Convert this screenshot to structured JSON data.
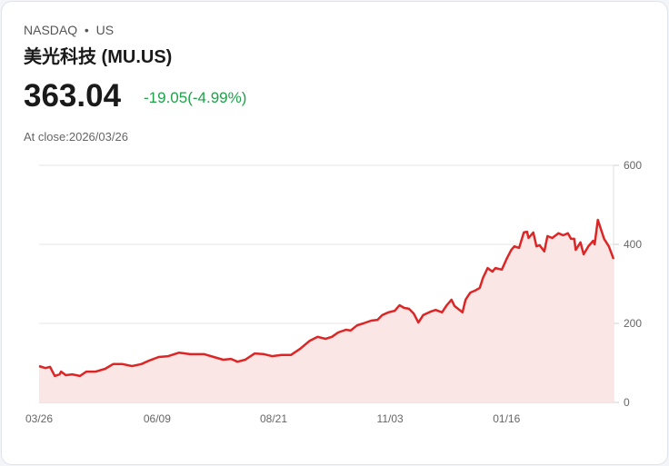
{
  "header": {
    "exchange": "NASDAQ",
    "separator": "•",
    "market": "US",
    "name": "美光科技 (MU.US)",
    "price": "363.04",
    "change": "-19.05(-4.99%)",
    "close_label": "At close:2026/03/26"
  },
  "colors": {
    "line": "#dc2626",
    "fill": "#fbe6e6",
    "change": "#1fa24a",
    "grid": "#e5e5e5"
  },
  "chart_data": {
    "type": "area",
    "title": "",
    "xlabel": "",
    "ylabel": "",
    "xlim": [
      0,
      365
    ],
    "ylim": [
      0,
      600
    ],
    "grid": true,
    "y_axis_position": "right",
    "yticks": [
      0,
      200,
      400,
      600
    ],
    "xticks": [
      {
        "x": 0,
        "label": "03/26"
      },
      {
        "x": 75,
        "label": "06/09"
      },
      {
        "x": 149,
        "label": "08/21"
      },
      {
        "x": 223,
        "label": "11/03"
      },
      {
        "x": 297,
        "label": "01/16"
      }
    ],
    "points": [
      [
        0,
        92
      ],
      [
        4,
        87
      ],
      [
        7,
        90
      ],
      [
        10,
        67
      ],
      [
        13,
        71
      ],
      [
        14,
        78
      ],
      [
        17,
        69
      ],
      [
        21,
        71
      ],
      [
        26,
        67
      ],
      [
        30,
        78
      ],
      [
        36,
        78
      ],
      [
        42,
        85
      ],
      [
        47,
        97
      ],
      [
        53,
        97
      ],
      [
        59,
        92
      ],
      [
        65,
        97
      ],
      [
        70,
        106
      ],
      [
        76,
        115
      ],
      [
        82,
        117
      ],
      [
        89,
        126
      ],
      [
        96,
        122
      ],
      [
        105,
        122
      ],
      [
        111,
        115
      ],
      [
        117,
        108
      ],
      [
        122,
        110
      ],
      [
        126,
        103
      ],
      [
        131,
        108
      ],
      [
        137,
        124
      ],
      [
        143,
        122
      ],
      [
        148,
        117
      ],
      [
        154,
        120
      ],
      [
        160,
        120
      ],
      [
        166,
        136
      ],
      [
        172,
        156
      ],
      [
        177,
        166
      ],
      [
        182,
        161
      ],
      [
        186,
        166
      ],
      [
        190,
        177
      ],
      [
        195,
        184
      ],
      [
        198,
        182
      ],
      [
        202,
        195
      ],
      [
        206,
        200
      ],
      [
        211,
        207
      ],
      [
        215,
        209
      ],
      [
        218,
        221
      ],
      [
        222,
        228
      ],
      [
        226,
        232
      ],
      [
        229,
        246
      ],
      [
        232,
        239
      ],
      [
        235,
        237
      ],
      [
        238,
        225
      ],
      [
        241,
        202
      ],
      [
        244,
        221
      ],
      [
        249,
        230
      ],
      [
        252,
        234
      ],
      [
        256,
        228
      ],
      [
        259,
        246
      ],
      [
        262,
        260
      ],
      [
        264,
        244
      ],
      [
        269,
        228
      ],
      [
        271,
        260
      ],
      [
        274,
        278
      ],
      [
        277,
        283
      ],
      [
        280,
        290
      ],
      [
        282,
        315
      ],
      [
        285,
        340
      ],
      [
        288,
        331
      ],
      [
        290,
        340
      ],
      [
        294,
        336
      ],
      [
        297,
        363
      ],
      [
        300,
        386
      ],
      [
        302,
        395
      ],
      [
        305,
        391
      ],
      [
        308,
        430
      ],
      [
        310,
        432
      ],
      [
        311,
        416
      ],
      [
        314,
        430
      ],
      [
        316,
        395
      ],
      [
        318,
        398
      ],
      [
        321,
        382
      ],
      [
        323,
        421
      ],
      [
        326,
        416
      ],
      [
        330,
        428
      ],
      [
        333,
        423
      ],
      [
        336,
        428
      ],
      [
        338,
        414
      ],
      [
        340,
        414
      ],
      [
        341,
        386
      ],
      [
        344,
        405
      ],
      [
        346,
        375
      ],
      [
        349,
        395
      ],
      [
        352,
        409
      ],
      [
        353,
        400
      ],
      [
        355,
        462
      ],
      [
        359,
        414
      ],
      [
        362,
        395
      ],
      [
        365,
        363
      ]
    ]
  }
}
